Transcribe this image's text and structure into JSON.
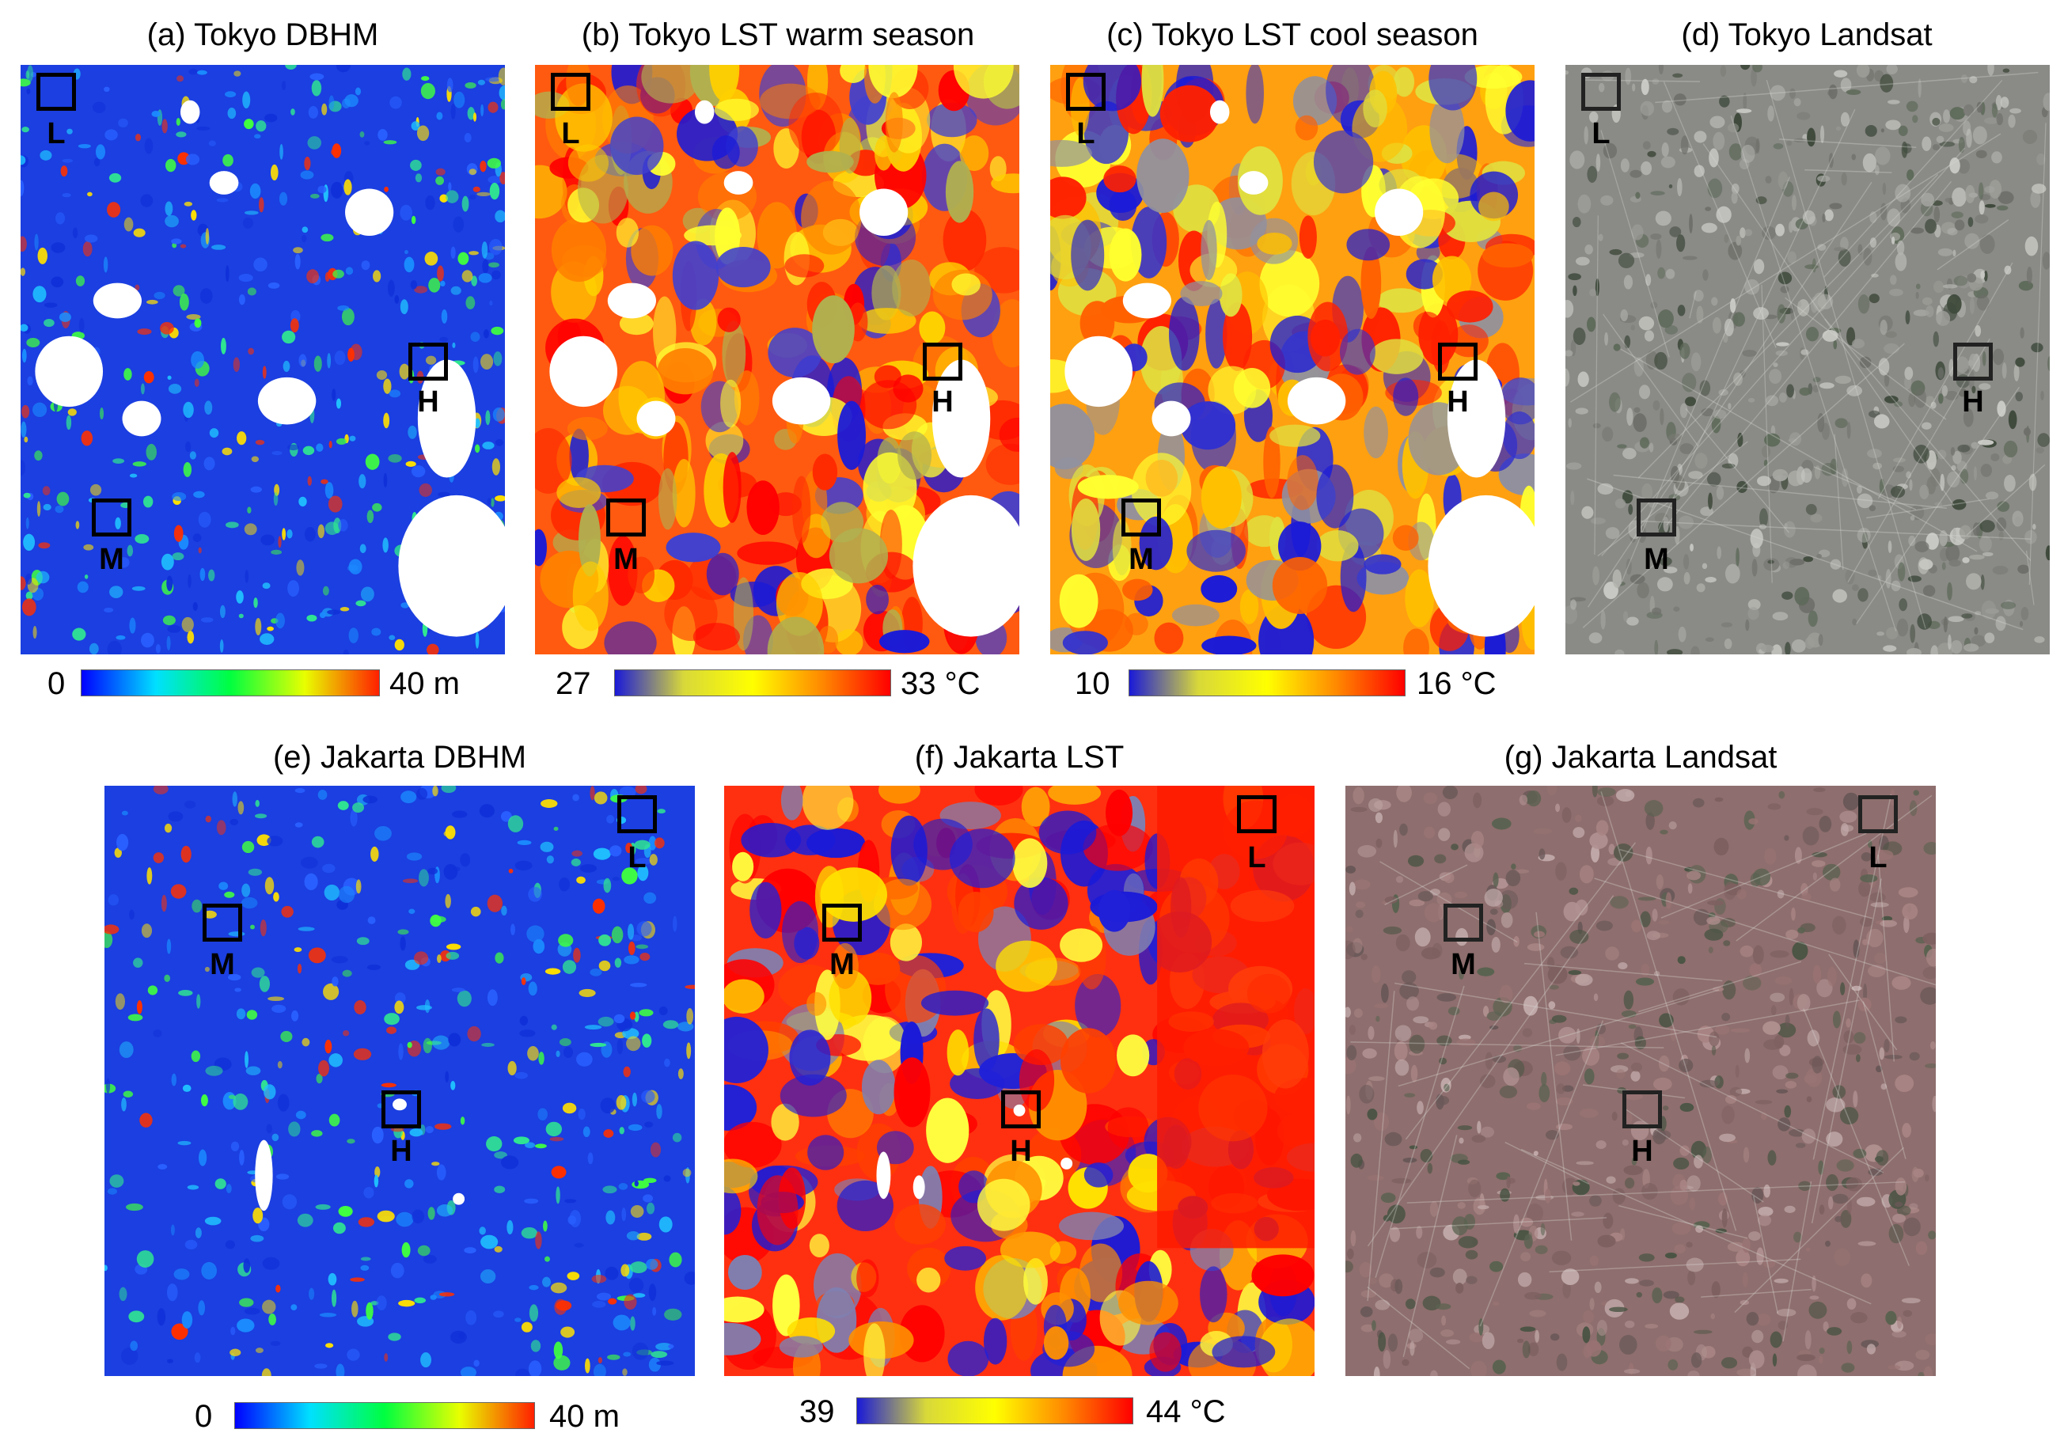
{
  "colors": {
    "dbhm_low": "#1b3fe0",
    "dbhm_grad": [
      "#0000ff",
      "#00e0ff",
      "#00ff40",
      "#e8ff00",
      "#ff2000"
    ],
    "lst_grad": [
      "#1a1ad8",
      "#d8d83a",
      "#ffff00",
      "#ff8a00",
      "#ff0000"
    ],
    "water": "#ffffff",
    "landsat_tokyo": "#8a8a86",
    "landsat_jakarta": "#8e6e6e"
  },
  "panels": {
    "a": {
      "title": "(a) Tokyo DBHM",
      "style": "dbhm"
    },
    "b": {
      "title": "(b) Tokyo LST warm season",
      "style": "lst"
    },
    "c": {
      "title": "(c) Tokyo LST cool season",
      "style": "lst_cool"
    },
    "d": {
      "title": "(d) Tokyo Landsat",
      "style": "landsat_tokyo"
    },
    "e": {
      "title": "(e) Jakarta DBHM",
      "style": "dbhm"
    },
    "f": {
      "title": "(f) Jakarta LST",
      "style": "lst_jk"
    },
    "g": {
      "title": "(g) Jakarta Landsat",
      "style": "landsat_jakarta"
    }
  },
  "markers": {
    "low": "L",
    "medium": "M",
    "high": "H"
  },
  "colorbars": {
    "a": {
      "min": "0",
      "max": "40 m"
    },
    "b": {
      "min": "27",
      "max": "33 °C"
    },
    "c": {
      "min": "10",
      "max": "16 °C"
    },
    "e": {
      "min": "0",
      "max": "40 m"
    },
    "f": {
      "min": "39",
      "max": "44 °C"
    }
  }
}
